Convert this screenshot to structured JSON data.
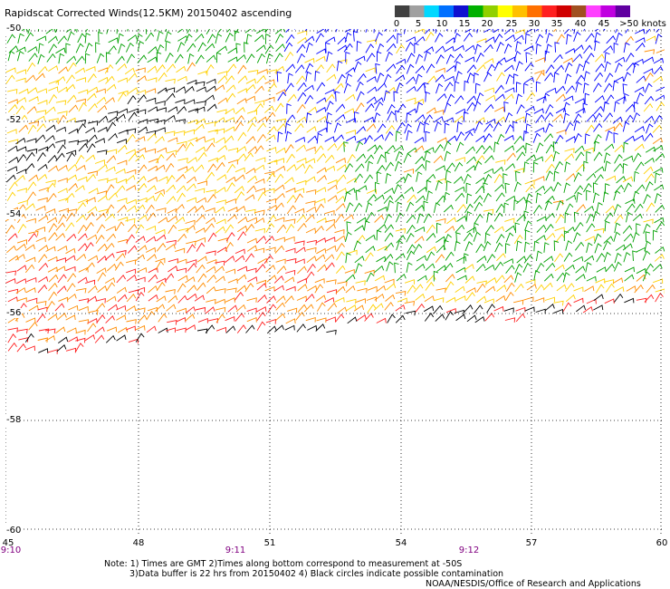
{
  "title": "Rapidscat Corrected Winds(12.5KM) 20150402 ascending",
  "colorbar": {
    "labels": [
      "0",
      "5",
      "10",
      "15",
      "20",
      "25",
      "30",
      "35",
      "40",
      "45",
      ">50 knots"
    ],
    "colors": [
      "#404040",
      "#a0a0a0",
      "#00d8ff",
      "#0070ff",
      "#1010d0",
      "#00b000",
      "#90d000",
      "#ffff00",
      "#ffc000",
      "#ff7000",
      "#ff2020",
      "#d00000",
      "#a05020",
      "#ff40ff",
      "#c000e0",
      "#6000a0"
    ]
  },
  "axes": {
    "lat_labels": [
      "-50",
      "-52",
      "-54",
      "-56",
      "-58",
      "-60"
    ],
    "lon_labels": [
      "45",
      "48",
      "51",
      "54",
      "57",
      "60"
    ],
    "time_labels": [
      "9:10",
      "9:11",
      "9:12"
    ]
  },
  "notes": {
    "line1": "Note: 1) Times are GMT 2)Times along bottom correspond to measurement at -50S",
    "line2": "3)Data buffer is 22 hrs from 20150402 4) Black circles indicate possible contamination",
    "credit": "NOAA/NESDIS/Office of Research and Applications"
  },
  "map": {
    "lat_range": [
      -60,
      -50
    ],
    "lon_range": [
      45,
      60
    ],
    "wind_colors": {
      "contaminated": "#000000",
      "10_15": "#0000ff",
      "15_20": "#00a000",
      "20_25": "#ffd000",
      "25_30": "#ff8c00",
      "30_35": "#ff2020"
    }
  }
}
